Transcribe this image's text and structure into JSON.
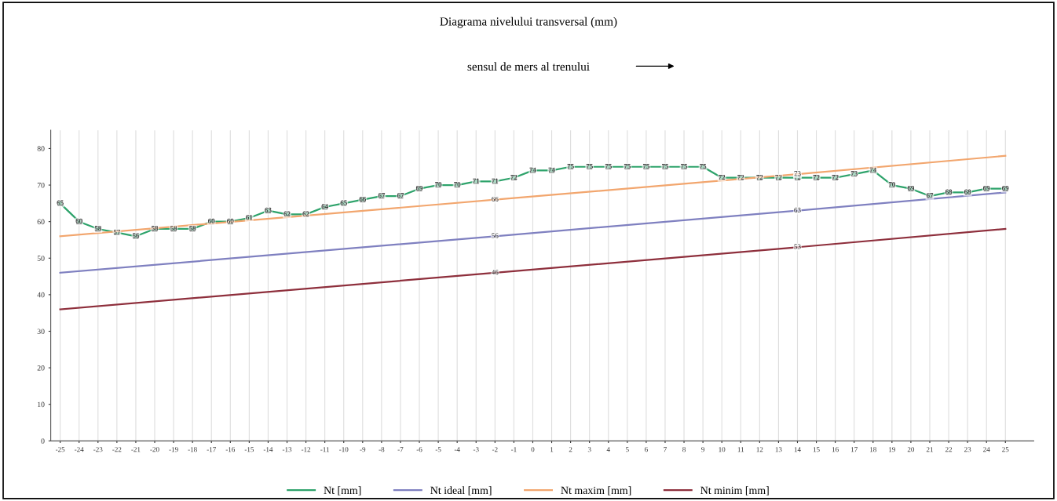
{
  "chart_data": {
    "type": "line",
    "title": "Diagrama nivelului transversal (mm)",
    "subtitle": "sensul de mers al trenului",
    "x": [
      -25,
      -24,
      -23,
      -22,
      -21,
      -20,
      -19,
      -18,
      -17,
      -16,
      -15,
      -14,
      -13,
      -12,
      -11,
      -10,
      -9,
      -8,
      -7,
      -6,
      -5,
      -4,
      -3,
      -2,
      -1,
      0,
      1,
      2,
      3,
      4,
      5,
      6,
      7,
      8,
      9,
      10,
      11,
      12,
      13,
      14,
      15,
      16,
      17,
      18,
      19,
      20,
      21,
      22,
      23,
      24,
      25
    ],
    "xlim": [
      -25.5,
      26.5
    ],
    "xticks": [
      -25,
      -24,
      -23,
      -22,
      -21,
      -20,
      -19,
      -18,
      -17,
      -16,
      -15,
      -14,
      -13,
      -12,
      -11,
      -10,
      -9,
      -8,
      -7,
      -6,
      -5,
      -4,
      -3,
      -2,
      -1,
      0,
      1,
      2,
      3,
      4,
      5,
      6,
      7,
      8,
      9,
      10,
      11,
      12,
      13,
      14,
      15,
      16,
      17,
      18,
      19,
      20,
      21,
      22,
      23,
      24,
      25
    ],
    "ylim": [
      0,
      85
    ],
    "yticks": [
      0,
      10,
      20,
      30,
      40,
      50,
      60,
      70,
      80
    ],
    "grid": "x",
    "legend": "bottom",
    "line_style": "solid",
    "series": [
      {
        "name": "Nt [mm]",
        "color": "#2ea36b",
        "marker": "square",
        "values": [
          65,
          60,
          58,
          57,
          56,
          58,
          58,
          58,
          60,
          60,
          61,
          63,
          62,
          62,
          64,
          65,
          66,
          67,
          67,
          69,
          70,
          70,
          71,
          71,
          72,
          74,
          74,
          75,
          75,
          75,
          75,
          75,
          75,
          75,
          75,
          72,
          72,
          72,
          72,
          72,
          72,
          72,
          73,
          74,
          70,
          69,
          67,
          68,
          68,
          69,
          69
        ],
        "value_labels": [
          "65",
          "60",
          "58",
          "57",
          "56",
          "58",
          "58",
          "58",
          "60",
          "60",
          "61",
          "63",
          "62",
          "62",
          "64",
          "65",
          "66",
          "67",
          "67",
          "69",
          "70",
          "70",
          "71",
          "71",
          "72",
          "74",
          "74",
          "75",
          "75",
          "75",
          "75",
          "75",
          "75",
          "75",
          "75",
          "72",
          "72",
          "72",
          "72",
          "72",
          "72",
          "72",
          "73",
          "74",
          "70",
          "69",
          "67",
          "68",
          "68",
          "69",
          "69"
        ]
      },
      {
        "name": "Nt ideal [mm]",
        "color": "#7f80c0",
        "x": [
          -25,
          -2,
          14,
          25
        ],
        "values": [
          46,
          56,
          63,
          68
        ],
        "value_labels": [
          null,
          "56",
          "63",
          null
        ]
      },
      {
        "name": "Nt maxim [mm]",
        "color": "#f2a66e",
        "x": [
          -25,
          -2,
          14,
          25
        ],
        "values": [
          56,
          66,
          73,
          78
        ],
        "value_labels": [
          null,
          "66",
          "73",
          null
        ]
      },
      {
        "name": "Nt minim [mm]",
        "color": "#8e2f3c",
        "x": [
          -25,
          -2,
          14,
          25
        ],
        "values": [
          36,
          46,
          53,
          58
        ],
        "value_labels": [
          null,
          "46",
          "53",
          null
        ]
      }
    ]
  }
}
